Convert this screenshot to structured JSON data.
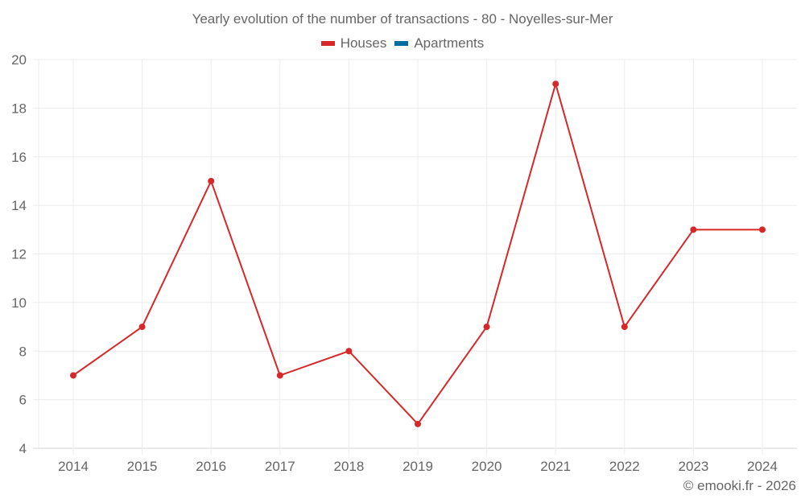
{
  "title": "Yearly evolution of the number of transactions - 80 - Noyelles-sur-Mer",
  "legend": [
    {
      "label": "Houses",
      "color": "#d62828"
    },
    {
      "label": "Apartments",
      "color": "#086ca0"
    }
  ],
  "credit": "© emooki.fr - 2026",
  "chart_data": {
    "type": "line",
    "title": "Yearly evolution of the number of transactions - 80 - Noyelles-sur-Mer",
    "xlabel": "",
    "ylabel": "",
    "categories": [
      "2014",
      "2015",
      "2016",
      "2017",
      "2018",
      "2019",
      "2020",
      "2021",
      "2022",
      "2023",
      "2024"
    ],
    "series": [
      {
        "name": "Houses",
        "color": "#d62828",
        "values": [
          7,
          9,
          15,
          7,
          8,
          5,
          9,
          19,
          9,
          13,
          13
        ]
      },
      {
        "name": "Apartments",
        "color": "#086ca0",
        "values": []
      }
    ],
    "ylim": [
      4,
      20
    ],
    "yticks": [
      4,
      6,
      8,
      10,
      12,
      14,
      16,
      18,
      20
    ],
    "grid": true,
    "legend_position": "top"
  }
}
